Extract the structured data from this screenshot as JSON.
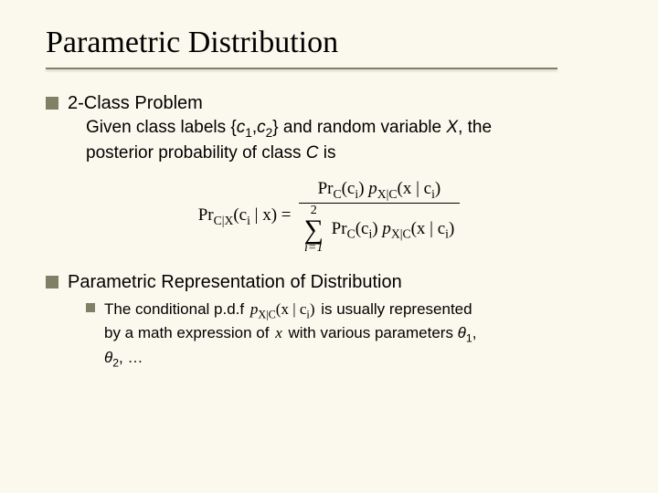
{
  "title": "Parametric Distribution",
  "section1": {
    "heading": "2-Class Problem",
    "line1_a": "Given class labels {",
    "c1": "c",
    "c1_sub": "1",
    "comma": ",",
    "c2": "c",
    "c2_sub": "2",
    "line1_b": "} and random variable ",
    "X": "X",
    "line1_c": ", the",
    "line2_a": "posterior probability of class ",
    "C": "C",
    "line2_b": " is"
  },
  "formula": {
    "lhs_pr": "Pr",
    "lhs_sub": "C|X",
    "lhs_arg": "(c",
    "lhs_i": "i",
    "lhs_mid": " | x) =",
    "num_pr": "Pr",
    "num_sub1": "C",
    "num_arg1": "(c",
    "num_i1": "i",
    "num_close1": ") ",
    "num_p": "p",
    "num_sub2": "X|C",
    "num_arg2": "(x | c",
    "num_i2": "i",
    "num_close2": ")",
    "sum_top": "2",
    "sum_bot": "i=1",
    "den_pr": "Pr",
    "den_sub1": "C",
    "den_arg1": "(c",
    "den_i1": "i",
    "den_close1": ") ",
    "den_p": "p",
    "den_sub2": "X|C",
    "den_arg2": "(x | c",
    "den_i2": "i",
    "den_close2": ")"
  },
  "section2": {
    "heading": "Parametric Representation of Distribution",
    "sub_a": "The conditional p.d.f ",
    "pdf_p": "p",
    "pdf_sub": "X|C",
    "pdf_arg": "(x | c",
    "pdf_i": "i",
    "pdf_close": ")",
    "sub_b": " is usually represented",
    "sub_c": "by a math expression of ",
    "x_var": "x",
    "sub_d": " with various parameters ",
    "theta1": "θ",
    "t1_sub": "1",
    "t_comma": ", ",
    "theta2": "θ",
    "t2_sub": "2",
    "sub_e": ", …"
  }
}
